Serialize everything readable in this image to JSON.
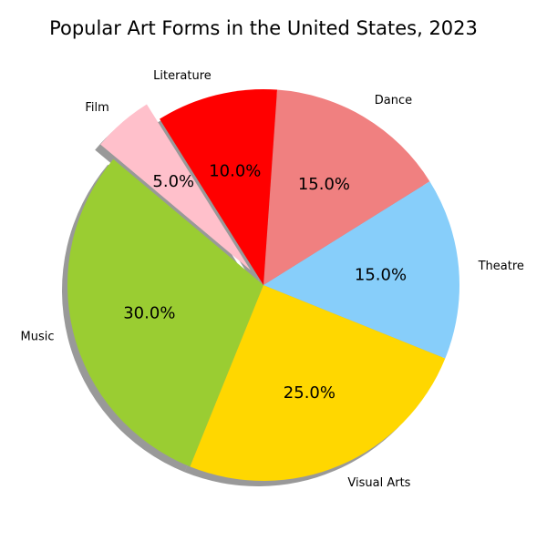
{
  "chart_data": {
    "type": "pie",
    "title": "Popular Art Forms in the United States, 2023",
    "categories": [
      "Music",
      "Visual Arts",
      "Theatre",
      "Dance",
      "Literature",
      "Film"
    ],
    "values": [
      30,
      25,
      15,
      15,
      10,
      5
    ],
    "value_labels": [
      "30.0%",
      "25.0%",
      "15.0%",
      "15.0%",
      "10.0%",
      "5.0%"
    ],
    "colors": [
      "#9ACD32",
      "#FFD700",
      "#87CEFA",
      "#F08080",
      "#FF0000",
      "#FFC0CB"
    ],
    "exploded": [
      "Film"
    ],
    "shadow": true
  }
}
